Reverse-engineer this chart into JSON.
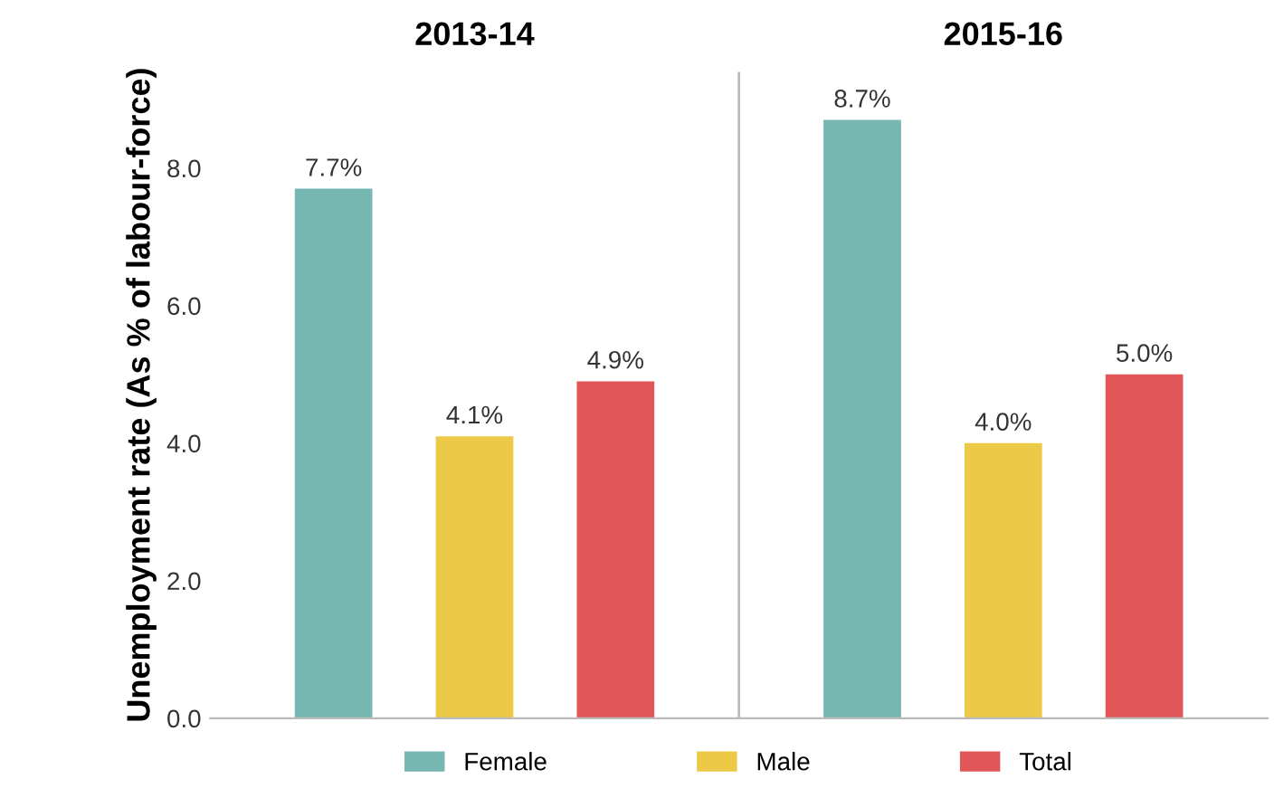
{
  "chart_data": {
    "type": "bar",
    "ylabel": "Unemployment rate (As % of labour-force)",
    "categories": [
      "2013-14",
      "2015-16"
    ],
    "series": [
      {
        "name": "Female",
        "color": "#76b7b2",
        "values": [
          7.7,
          8.7
        ],
        "value_labels": [
          "7.7%",
          "8.7%"
        ]
      },
      {
        "name": "Male",
        "color": "#edc948",
        "values": [
          4.1,
          4.0
        ],
        "value_labels": [
          "4.1%",
          "4.0%"
        ]
      },
      {
        "name": "Total",
        "color": "#e15759",
        "values": [
          4.9,
          5.0
        ],
        "value_labels": [
          "4.9%",
          "5.0%"
        ]
      }
    ],
    "ylim": [
      0,
      9.4
    ],
    "yticks": [
      {
        "value": 0,
        "label": "0.0"
      },
      {
        "value": 2,
        "label": "2.0"
      },
      {
        "value": 4,
        "label": "4.0"
      },
      {
        "value": 6,
        "label": "6.0"
      },
      {
        "value": 8,
        "label": "8.0"
      }
    ],
    "legend": "bottom"
  }
}
